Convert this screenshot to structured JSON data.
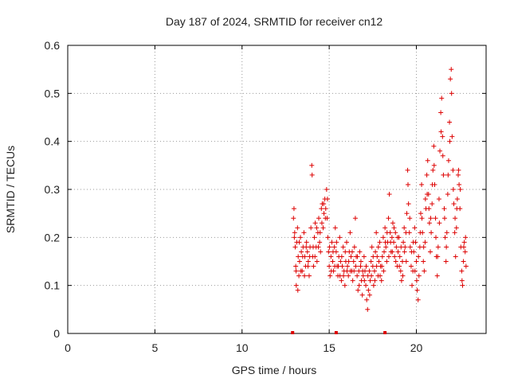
{
  "chart_data": {
    "type": "scatter",
    "title": "Day 187 of 2024, SRMTID for receiver cn12",
    "xlabel": "GPS time / hours",
    "ylabel": "SRMTID / TECUs",
    "xlim": [
      0,
      24
    ],
    "ylim": [
      0,
      0.6
    ],
    "xticks": [
      0,
      5,
      10,
      15,
      20
    ],
    "xtick_labels": [
      "0",
      "5",
      "10",
      "15",
      "20"
    ],
    "yticks": [
      0,
      0.1,
      0.2,
      0.3,
      0.4,
      0.5,
      0.6
    ],
    "ytick_labels": [
      "0",
      "0.1",
      "0.2",
      "0.3",
      "0.4",
      "0.5",
      "0.6"
    ],
    "grid": true,
    "marker": "plus",
    "color": "#dd0000",
    "series": [
      {
        "name": "SRMTID",
        "points": [
          [
            12.95,
            0.24
          ],
          [
            12.98,
            0.26
          ],
          [
            13.02,
            0.21
          ],
          [
            13.05,
            0.18
          ],
          [
            13.08,
            0.14
          ],
          [
            13.11,
            0.1
          ],
          [
            13.14,
            0.19
          ],
          [
            13.18,
            0.22
          ],
          [
            13.22,
            0.16
          ],
          [
            13.26,
            0.12
          ],
          [
            13.3,
            0.15
          ],
          [
            13.35,
            0.2
          ],
          [
            13.4,
            0.17
          ],
          [
            13.45,
            0.13
          ],
          [
            13.5,
            0.18
          ],
          [
            13.55,
            0.21
          ],
          [
            13.6,
            0.16
          ],
          [
            13.65,
            0.14
          ],
          [
            13.7,
            0.19
          ],
          [
            13.75,
            0.17
          ],
          [
            13.8,
            0.15
          ],
          [
            13.85,
            0.12
          ],
          [
            13.9,
            0.18
          ],
          [
            13.95,
            0.22
          ],
          [
            14.0,
            0.35
          ],
          [
            14.02,
            0.33
          ],
          [
            14.05,
            0.16
          ],
          [
            14.1,
            0.14
          ],
          [
            14.15,
            0.2
          ],
          [
            14.2,
            0.23
          ],
          [
            14.25,
            0.18
          ],
          [
            14.3,
            0.15
          ],
          [
            14.35,
            0.21
          ],
          [
            14.4,
            0.24
          ],
          [
            14.45,
            0.19
          ],
          [
            14.5,
            0.17
          ],
          [
            14.55,
            0.26
          ],
          [
            14.6,
            0.27
          ],
          [
            14.65,
            0.22
          ],
          [
            14.7,
            0.25
          ],
          [
            14.75,
            0.28
          ],
          [
            14.8,
            0.26
          ],
          [
            14.85,
            0.3
          ],
          [
            14.88,
            0.24
          ],
          [
            14.92,
            0.2
          ],
          [
            14.96,
            0.17
          ],
          [
            15.0,
            0.14
          ],
          [
            15.05,
            0.12
          ],
          [
            15.1,
            0.16
          ],
          [
            15.15,
            0.19
          ],
          [
            15.2,
            0.15
          ],
          [
            15.25,
            0.13
          ],
          [
            15.3,
            0.18
          ],
          [
            15.35,
            0.22
          ],
          [
            15.4,
            0.17
          ],
          [
            15.45,
            0.14
          ],
          [
            15.5,
            0.12
          ],
          [
            15.55,
            0.16
          ],
          [
            15.6,
            0.2
          ],
          [
            15.65,
            0.15
          ],
          [
            15.7,
            0.11
          ],
          [
            15.75,
            0.14
          ],
          [
            15.8,
            0.18
          ],
          [
            15.85,
            0.13
          ],
          [
            15.9,
            0.1
          ],
          [
            15.95,
            0.15
          ],
          [
            16.0,
            0.19
          ],
          [
            16.05,
            0.14
          ],
          [
            16.1,
            0.12
          ],
          [
            16.15,
            0.17
          ],
          [
            16.2,
            0.21
          ],
          [
            16.25,
            0.16
          ],
          [
            16.3,
            0.13
          ],
          [
            16.35,
            0.11
          ],
          [
            16.4,
            0.15
          ],
          [
            16.45,
            0.18
          ],
          [
            16.5,
            0.24
          ],
          [
            16.55,
            0.16
          ],
          [
            16.6,
            0.12
          ],
          [
            16.65,
            0.09
          ],
          [
            16.7,
            0.13
          ],
          [
            16.75,
            0.17
          ],
          [
            16.8,
            0.14
          ],
          [
            16.85,
            0.11
          ],
          [
            16.9,
            0.08
          ],
          [
            16.95,
            0.12
          ],
          [
            17.0,
            0.16
          ],
          [
            17.05,
            0.13
          ],
          [
            17.1,
            0.1
          ],
          [
            17.15,
            0.07
          ],
          [
            17.2,
            0.05
          ],
          [
            17.25,
            0.09
          ],
          [
            17.3,
            0.13
          ],
          [
            17.35,
            0.11
          ],
          [
            17.4,
            0.15
          ],
          [
            17.45,
            0.18
          ],
          [
            17.5,
            0.14
          ],
          [
            17.55,
            0.1
          ],
          [
            17.6,
            0.13
          ],
          [
            17.65,
            0.17
          ],
          [
            17.7,
            0.21
          ],
          [
            17.75,
            0.16
          ],
          [
            17.8,
            0.12
          ],
          [
            17.85,
            0.15
          ],
          [
            17.9,
            0.19
          ],
          [
            17.95,
            0.14
          ],
          [
            18.0,
            0.11
          ],
          [
            18.05,
            0.16
          ],
          [
            18.1,
            0.2
          ],
          [
            18.15,
            0.17
          ],
          [
            18.2,
            0.22
          ],
          [
            18.25,
            0.18
          ],
          [
            18.3,
            0.15
          ],
          [
            18.35,
            0.19
          ],
          [
            18.4,
            0.24
          ],
          [
            18.45,
            0.29
          ],
          [
            18.5,
            0.21
          ],
          [
            18.55,
            0.17
          ],
          [
            18.6,
            0.2
          ],
          [
            18.65,
            0.23
          ],
          [
            18.7,
            0.19
          ],
          [
            18.75,
            0.16
          ],
          [
            18.8,
            0.21
          ],
          [
            18.85,
            0.18
          ],
          [
            18.9,
            0.14
          ],
          [
            18.95,
            0.17
          ],
          [
            19.0,
            0.2
          ],
          [
            19.05,
            0.16
          ],
          [
            19.1,
            0.13
          ],
          [
            19.15,
            0.11
          ],
          [
            19.2,
            0.15
          ],
          [
            19.25,
            0.19
          ],
          [
            19.3,
            0.22
          ],
          [
            19.35,
            0.18
          ],
          [
            19.4,
            0.21
          ],
          [
            19.45,
            0.25
          ],
          [
            19.5,
            0.34
          ],
          [
            19.55,
            0.27
          ],
          [
            19.6,
            0.21
          ],
          [
            19.65,
            0.18
          ],
          [
            19.7,
            0.14
          ],
          [
            19.75,
            0.1
          ],
          [
            19.8,
            0.13
          ],
          [
            19.85,
            0.17
          ],
          [
            19.9,
            0.22
          ],
          [
            19.95,
            0.19
          ],
          [
            20.0,
            0.15
          ],
          [
            20.05,
            0.09
          ],
          [
            20.1,
            0.07
          ],
          [
            20.15,
            0.12
          ],
          [
            20.2,
            0.18
          ],
          [
            20.25,
            0.25
          ],
          [
            20.3,
            0.31
          ],
          [
            20.35,
            0.21
          ],
          [
            20.4,
            0.15
          ],
          [
            20.45,
            0.13
          ],
          [
            20.5,
            0.19
          ],
          [
            20.55,
            0.26
          ],
          [
            20.6,
            0.33
          ],
          [
            20.65,
            0.36
          ],
          [
            20.7,
            0.29
          ],
          [
            20.75,
            0.23
          ],
          [
            20.8,
            0.17
          ],
          [
            20.85,
            0.21
          ],
          [
            20.9,
            0.27
          ],
          [
            20.95,
            0.34
          ],
          [
            21.0,
            0.39
          ],
          [
            21.05,
            0.31
          ],
          [
            21.1,
            0.24
          ],
          [
            21.15,
            0.16
          ],
          [
            21.2,
            0.12
          ],
          [
            21.25,
            0.18
          ],
          [
            21.3,
            0.28
          ],
          [
            21.35,
            0.38
          ],
          [
            21.4,
            0.46
          ],
          [
            21.45,
            0.49
          ],
          [
            21.5,
            0.41
          ],
          [
            21.55,
            0.33
          ],
          [
            21.6,
            0.26
          ],
          [
            21.65,
            0.2
          ],
          [
            21.7,
            0.15
          ],
          [
            21.75,
            0.21
          ],
          [
            21.8,
            0.29
          ],
          [
            21.85,
            0.36
          ],
          [
            21.9,
            0.44
          ],
          [
            21.95,
            0.53
          ],
          [
            22.0,
            0.55
          ],
          [
            22.05,
            0.41
          ],
          [
            22.1,
            0.34
          ],
          [
            22.15,
            0.27
          ],
          [
            22.2,
            0.21
          ],
          [
            22.25,
            0.16
          ],
          [
            22.3,
            0.22
          ],
          [
            22.35,
            0.28
          ],
          [
            22.4,
            0.33
          ],
          [
            22.45,
            0.31
          ],
          [
            22.5,
            0.26
          ],
          [
            22.55,
            0.18
          ],
          [
            22.6,
            0.13
          ],
          [
            22.65,
            0.1
          ],
          [
            22.7,
            0.15
          ],
          [
            22.75,
            0.19
          ],
          [
            22.8,
            0.17
          ],
          [
            22.85,
            0.14
          ],
          [
            13.0,
            0.2
          ],
          [
            13.1,
            0.13
          ],
          [
            13.2,
            0.09
          ],
          [
            13.28,
            0.19
          ],
          [
            13.38,
            0.13
          ],
          [
            13.48,
            0.16
          ],
          [
            13.58,
            0.12
          ],
          [
            13.68,
            0.18
          ],
          [
            13.78,
            0.14
          ],
          [
            13.88,
            0.16
          ],
          [
            14.08,
            0.18
          ],
          [
            14.18,
            0.16
          ],
          [
            14.28,
            0.22
          ],
          [
            14.38,
            0.18
          ],
          [
            14.48,
            0.21
          ],
          [
            14.58,
            0.23
          ],
          [
            14.68,
            0.27
          ],
          [
            14.78,
            0.24
          ],
          [
            14.9,
            0.28
          ],
          [
            15.02,
            0.18
          ],
          [
            15.12,
            0.13
          ],
          [
            15.22,
            0.17
          ],
          [
            15.32,
            0.14
          ],
          [
            15.42,
            0.19
          ],
          [
            15.52,
            0.14
          ],
          [
            15.62,
            0.12
          ],
          [
            15.72,
            0.16
          ],
          [
            15.82,
            0.12
          ],
          [
            15.92,
            0.17
          ],
          [
            16.02,
            0.13
          ],
          [
            16.12,
            0.15
          ],
          [
            16.22,
            0.13
          ],
          [
            16.32,
            0.17
          ],
          [
            16.42,
            0.13
          ],
          [
            16.52,
            0.14
          ],
          [
            16.62,
            0.16
          ],
          [
            16.72,
            0.1
          ],
          [
            16.82,
            0.15
          ],
          [
            16.92,
            0.13
          ],
          [
            17.02,
            0.11
          ],
          [
            17.12,
            0.14
          ],
          [
            17.22,
            0.12
          ],
          [
            17.32,
            0.08
          ],
          [
            17.42,
            0.12
          ],
          [
            17.52,
            0.16
          ],
          [
            17.62,
            0.11
          ],
          [
            17.72,
            0.14
          ],
          [
            17.82,
            0.18
          ],
          [
            17.92,
            0.12
          ],
          [
            18.02,
            0.14
          ],
          [
            18.12,
            0.13
          ],
          [
            18.22,
            0.19
          ],
          [
            18.32,
            0.21
          ],
          [
            18.42,
            0.16
          ],
          [
            18.52,
            0.19
          ],
          [
            18.62,
            0.17
          ],
          [
            18.72,
            0.22
          ],
          [
            18.82,
            0.15
          ],
          [
            18.92,
            0.2
          ],
          [
            19.02,
            0.14
          ],
          [
            19.12,
            0.18
          ],
          [
            19.22,
            0.12
          ],
          [
            19.32,
            0.17
          ],
          [
            19.42,
            0.15
          ],
          [
            19.52,
            0.31
          ],
          [
            19.62,
            0.24
          ],
          [
            19.72,
            0.17
          ],
          [
            19.82,
            0.19
          ],
          [
            19.92,
            0.13
          ],
          [
            20.02,
            0.11
          ],
          [
            20.12,
            0.16
          ],
          [
            20.22,
            0.21
          ],
          [
            20.32,
            0.24
          ],
          [
            20.42,
            0.18
          ],
          [
            20.52,
            0.28
          ],
          [
            20.62,
            0.29
          ],
          [
            20.72,
            0.26
          ],
          [
            20.82,
            0.24
          ],
          [
            20.92,
            0.31
          ],
          [
            21.02,
            0.35
          ],
          [
            21.12,
            0.2
          ],
          [
            21.22,
            0.16
          ],
          [
            21.32,
            0.23
          ],
          [
            21.42,
            0.42
          ],
          [
            21.52,
            0.37
          ],
          [
            21.62,
            0.24
          ],
          [
            21.72,
            0.18
          ],
          [
            21.82,
            0.33
          ],
          [
            21.92,
            0.4
          ],
          [
            22.02,
            0.5
          ],
          [
            22.12,
            0.3
          ],
          [
            22.22,
            0.24
          ],
          [
            22.32,
            0.26
          ],
          [
            22.42,
            0.34
          ],
          [
            22.52,
            0.3
          ],
          [
            22.62,
            0.11
          ],
          [
            22.72,
            0.18
          ],
          [
            22.82,
            0.2
          ]
        ]
      }
    ],
    "zero_markers_x": [
      12.9,
      15.4,
      18.2
    ]
  }
}
